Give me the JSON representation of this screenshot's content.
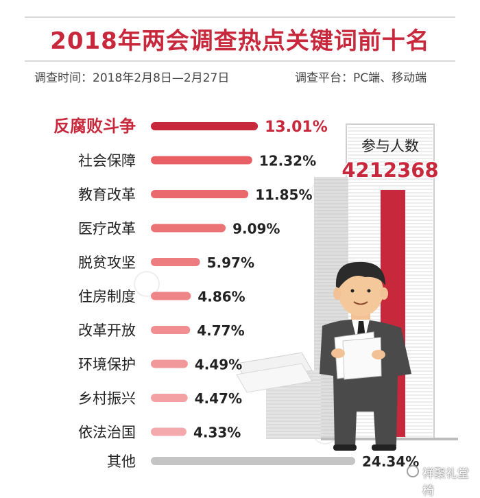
{
  "header": {
    "title": "2018年两会调查热点关键词前十名",
    "survey_time": "调查时间：2018年2月8日—2月27日",
    "survey_platform": "调查平台：PC端、移动端"
  },
  "participants": {
    "label": "参与人数",
    "value": "4212368"
  },
  "footer": {
    "signature": "祥聚礼堂椅"
  },
  "colors": {
    "accent": "#c8283b",
    "bar_light": "#ef7b7e",
    "other_bar": "#c4c4c4"
  },
  "chart_data": {
    "type": "bar",
    "orientation": "horizontal",
    "title": "2018年两会调查热点关键词前十名",
    "categories": [
      "反腐败斗争",
      "社会保障",
      "教育改革",
      "医疗改革",
      "脱贫攻坚",
      "住房制度",
      "改革开放",
      "环境保护",
      "乡村振兴",
      "依法治国",
      "其他"
    ],
    "values": [
      13.01,
      12.32,
      11.85,
      9.09,
      5.97,
      4.86,
      4.77,
      4.49,
      4.47,
      4.33,
      24.34
    ],
    "value_labels": [
      "13.01%",
      "12.32%",
      "11.85%",
      "9.09%",
      "5.97%",
      "4.86%",
      "4.77%",
      "4.49%",
      "4.47%",
      "4.33%",
      "24.34%"
    ],
    "unit": "%"
  }
}
